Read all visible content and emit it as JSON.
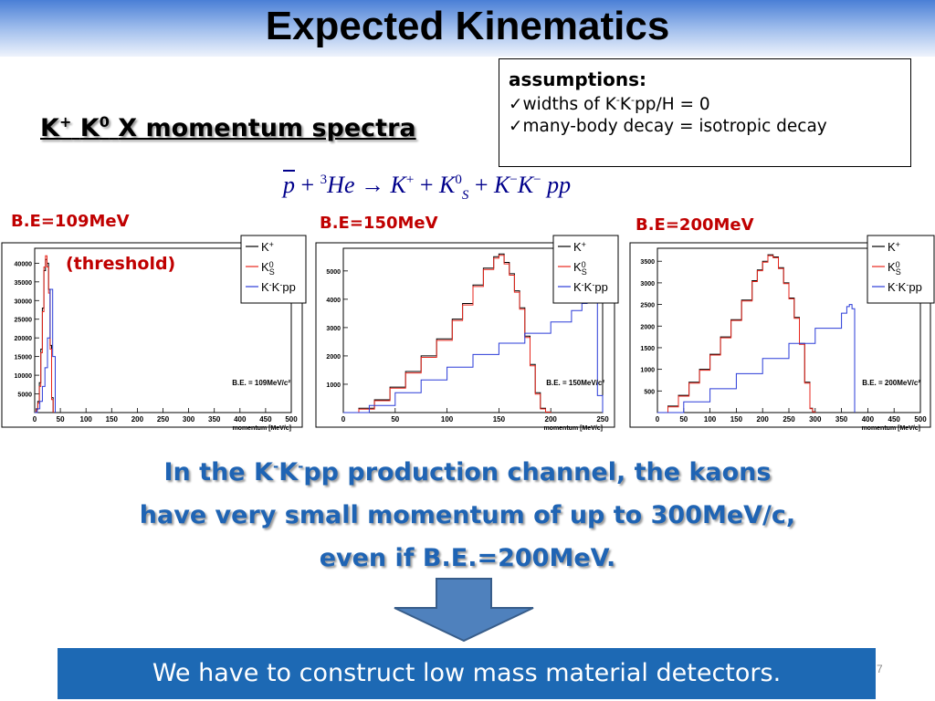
{
  "slide": {
    "title": "Expected Kinematics",
    "subtitle": {
      "k_plus": "K",
      "k_plus_sup": "+",
      "k_zero": "K",
      "k_zero_sup": "0",
      "rest": "X momentum spectra"
    },
    "assumptions": {
      "heading": "assumptions:",
      "line1": {
        "check": "✓",
        "a": "widths of K",
        "s1": "-",
        "b": "K",
        "s2": "-",
        "c": "pp/H = 0"
      },
      "line2": {
        "check": "✓",
        "text": "many-body decay = isotropic decay"
      }
    },
    "equation": {
      "p": "p",
      "plus1": "+",
      "he_sup": "3",
      "he": "He",
      "arrow": "→",
      "k": "K",
      "k_sup": "+",
      "plus2": "+",
      "ks": "K",
      "ks_sup": "0",
      "ks_sub": "S",
      "plus3": "+",
      "km1": "K",
      "km1_sup": "−",
      "km2": "K",
      "km2_sup": "−",
      "pp": "pp"
    },
    "threshold_note": "(threshold)",
    "message": {
      "l1a": "In the K",
      "l1s1": "-",
      "l1b": "K",
      "l1s2": "-",
      "l1c": "pp production channel, the kaons",
      "l2": "have very small momentum of up to 300MeV/c,",
      "l3": "even if B.E.=200MeV."
    },
    "banner": "We have to construct low mass material detectors.",
    "page_number": "7"
  },
  "colors": {
    "k_plus": "#000000",
    "k_s0": "#e8261c",
    "kkpp": "#2a3bd8",
    "be_label": "#c00000",
    "message": "#1f64b4",
    "banner": "#1d69b4"
  },
  "chart_data": [
    {
      "type": "histogram",
      "label": "B.E=109MeV",
      "annotation": "B.E. = 109MeV/c²",
      "xlabel": "momentum [MeV/c]",
      "xlim": [
        0,
        500
      ],
      "ylim": [
        0,
        44000
      ],
      "xticks": [
        0,
        50,
        100,
        150,
        200,
        250,
        300,
        350,
        400,
        450,
        500
      ],
      "yticks": [
        5000,
        10000,
        15000,
        20000,
        25000,
        30000,
        35000,
        40000
      ],
      "legend": [
        "K+",
        "KS0",
        "K-K-pp"
      ],
      "series": [
        {
          "name": "K+",
          "color": "#000000",
          "x": [
            0,
            3,
            6,
            9,
            12,
            15,
            18,
            21,
            24,
            27,
            30,
            33,
            36
          ],
          "y": [
            0,
            1000,
            3000,
            8000,
            17000,
            28000,
            38000,
            41000,
            40000,
            33000,
            18000,
            4000,
            0
          ]
        },
        {
          "name": "KS0",
          "color": "#e8261c",
          "x": [
            0,
            3,
            6,
            9,
            12,
            15,
            18,
            21,
            24,
            27,
            30,
            33,
            36
          ],
          "y": [
            0,
            800,
            2500,
            7000,
            16000,
            27000,
            39000,
            42000,
            39000,
            32000,
            17000,
            3500,
            0
          ]
        },
        {
          "name": "K-K-pp",
          "color": "#2a3bd8",
          "x": [
            0,
            5,
            10,
            15,
            20,
            25,
            30,
            35,
            40
          ],
          "y": [
            0,
            1000,
            3000,
            7000,
            12000,
            20000,
            33000,
            15000,
            0
          ]
        }
      ]
    },
    {
      "type": "histogram",
      "label": "B.E=150MeV",
      "annotation": "B.E. = 150MeV/c²",
      "xlabel": "momentum [MeV/c]",
      "xlim": [
        0,
        250
      ],
      "ylim": [
        0,
        5800
      ],
      "xticks": [
        0,
        50,
        100,
        150,
        200,
        250
      ],
      "yticks": [
        1000,
        2000,
        3000,
        4000,
        5000
      ],
      "legend": [
        "K+",
        "KS0",
        "K-K-pp"
      ],
      "series": [
        {
          "name": "K+",
          "color": "#000000",
          "x": [
            0,
            15,
            30,
            45,
            60,
            75,
            90,
            105,
            115,
            125,
            135,
            145,
            150,
            155,
            160,
            165,
            170,
            175,
            180,
            185,
            190,
            195,
            200
          ],
          "y": [
            0,
            150,
            450,
            900,
            1450,
            2000,
            2600,
            3300,
            3850,
            4500,
            5100,
            5500,
            5600,
            5300,
            4900,
            4300,
            3700,
            2700,
            1700,
            700,
            150,
            20,
            0
          ]
        },
        {
          "name": "KS0",
          "color": "#e8261c",
          "x": [
            0,
            15,
            30,
            45,
            60,
            75,
            90,
            105,
            115,
            125,
            135,
            145,
            150,
            155,
            160,
            165,
            170,
            175,
            180,
            185,
            190,
            195,
            200
          ],
          "y": [
            0,
            120,
            420,
            860,
            1400,
            1950,
            2550,
            3250,
            3800,
            4450,
            5050,
            5450,
            5550,
            5250,
            4850,
            4250,
            3650,
            2650,
            1650,
            650,
            130,
            15,
            0
          ]
        },
        {
          "name": "K-K-pp",
          "color": "#2a3bd8",
          "x": [
            0,
            25,
            50,
            75,
            100,
            125,
            150,
            175,
            200,
            220,
            230,
            235,
            240,
            245,
            250
          ],
          "y": [
            0,
            250,
            700,
            1150,
            1600,
            2050,
            2450,
            2800,
            3200,
            3600,
            3850,
            3950,
            3900,
            600,
            0
          ]
        }
      ]
    },
    {
      "type": "histogram",
      "label": "B.E=200MeV",
      "annotation": "B.E. = 200MeV/c²",
      "xlabel": "momentum [MeV/c]",
      "xlim": [
        0,
        500
      ],
      "ylim": [
        0,
        3800
      ],
      "xticks": [
        0,
        50,
        100,
        150,
        200,
        250,
        300,
        350,
        400,
        450,
        500
      ],
      "yticks": [
        500,
        1000,
        1500,
        2000,
        2500,
        3000,
        3500
      ],
      "legend": [
        "K+",
        "KS0",
        "K-K-pp"
      ],
      "series": [
        {
          "name": "K+",
          "color": "#000000",
          "x": [
            0,
            20,
            40,
            60,
            80,
            100,
            120,
            140,
            160,
            180,
            190,
            200,
            210,
            220,
            230,
            240,
            250,
            260,
            270,
            280,
            290,
            295,
            300
          ],
          "y": [
            0,
            150,
            400,
            700,
            1000,
            1350,
            1750,
            2150,
            2600,
            3050,
            3300,
            3500,
            3650,
            3600,
            3350,
            3000,
            2650,
            2200,
            1600,
            700,
            100,
            20,
            0
          ]
        },
        {
          "name": "KS0",
          "color": "#e8261c",
          "x": [
            0,
            20,
            40,
            60,
            80,
            100,
            120,
            140,
            160,
            180,
            190,
            200,
            210,
            220,
            230,
            240,
            250,
            260,
            270,
            280,
            290,
            295,
            300
          ],
          "y": [
            0,
            130,
            380,
            680,
            980,
            1330,
            1730,
            2130,
            2580,
            3030,
            3280,
            3480,
            3630,
            3580,
            3330,
            2980,
            2630,
            2180,
            1580,
            680,
            90,
            15,
            0
          ]
        },
        {
          "name": "K-K-pp",
          "color": "#2a3bd8",
          "x": [
            0,
            50,
            100,
            150,
            200,
            250,
            300,
            350,
            360,
            365,
            370,
            375
          ],
          "y": [
            0,
            250,
            550,
            900,
            1250,
            1600,
            1950,
            2300,
            2450,
            2500,
            2400,
            0
          ]
        }
      ]
    }
  ]
}
